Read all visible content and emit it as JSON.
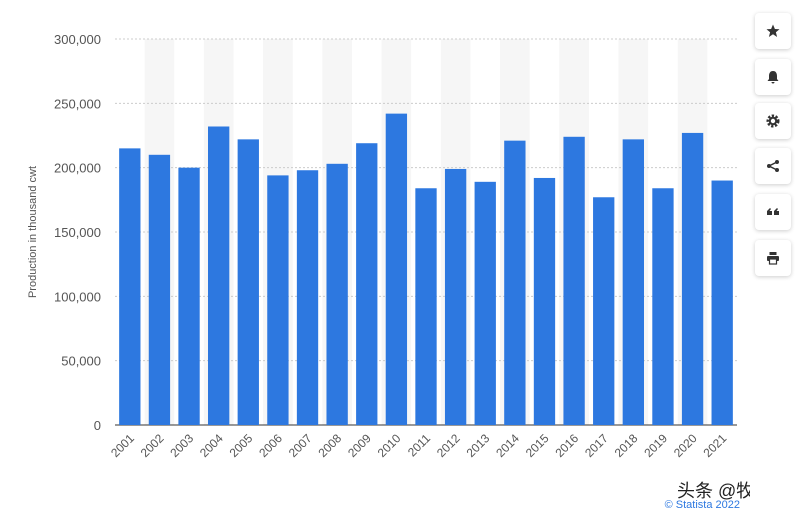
{
  "chart_data": {
    "type": "bar",
    "y_label": "Production in thousand cwt",
    "categories": [
      "2001",
      "2002",
      "2003",
      "2004",
      "2005",
      "2006",
      "2007",
      "2008",
      "2009",
      "2010",
      "2011",
      "2012",
      "2013",
      "2014",
      "2015",
      "2016",
      "2017",
      "2018",
      "2019",
      "2020",
      "2021"
    ],
    "values": [
      215000,
      210000,
      200000,
      232000,
      222000,
      194000,
      198000,
      203000,
      219000,
      242000,
      184000,
      199000,
      189000,
      221000,
      192000,
      224000,
      177000,
      222000,
      184000,
      227000,
      190000
    ],
    "color": "#2d78e0",
    "ylim": [
      0,
      300000
    ],
    "yticks": [
      0,
      {
        "value": 50000,
        "label": "50,000"
      },
      {
        "value": 100000,
        "label": "100,000"
      },
      {
        "value": 150000,
        "label": "150,000"
      },
      {
        "value": 200000,
        "label": "200,000"
      },
      {
        "value": 250000,
        "label": "250,000"
      },
      {
        "value": 300000,
        "label": "300,000"
      }
    ],
    "grid": true,
    "source": "© Statista 2022",
    "watermark": "头条 @牧海"
  }
}
